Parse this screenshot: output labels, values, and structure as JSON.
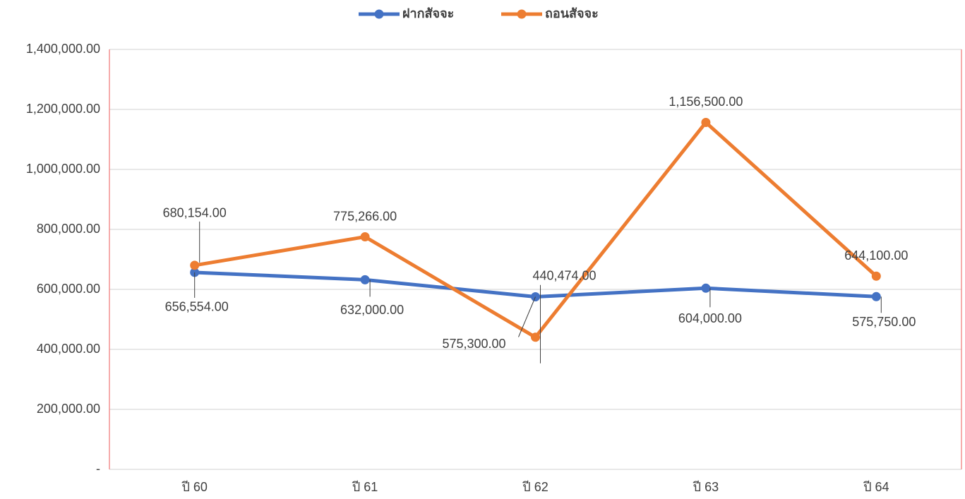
{
  "chart_data": {
    "type": "line",
    "categories": [
      "ปี 60",
      "ปี 61",
      "ปี 62",
      "ปี 63",
      "ปี 64"
    ],
    "series": [
      {
        "name": "ฝากสัจจะ",
        "color": "#4472c4",
        "values": [
          656554,
          632000,
          575300,
          604000,
          575750
        ],
        "value_labels": [
          "656,554.00",
          "632,000.00",
          "575,300.00",
          "604,000.00",
          "575,750.00"
        ]
      },
      {
        "name": "ถอนสัจจะ",
        "color": "#ed7d31",
        "values": [
          680154,
          775266,
          440474,
          1156500,
          644100
        ],
        "value_labels": [
          "680,154.00",
          "775,266.00",
          "440,474.00",
          "1,156,500.00",
          "644,100.00"
        ]
      }
    ],
    "ylim": [
      0,
      1400000
    ],
    "yticks": [
      {
        "value": 0,
        "label": "-"
      },
      {
        "value": 200000,
        "label": "200,000.00"
      },
      {
        "value": 400000,
        "label": "400,000.00"
      },
      {
        "value": 600000,
        "label": "600,000.00"
      },
      {
        "value": 800000,
        "label": "800,000.00"
      },
      {
        "value": 1000000,
        "label": "1,000,000.00"
      },
      {
        "value": 1200000,
        "label": "1,200,000.00"
      },
      {
        "value": 1400000,
        "label": "1,400,000.00"
      }
    ],
    "grid": true,
    "legend": "top"
  }
}
